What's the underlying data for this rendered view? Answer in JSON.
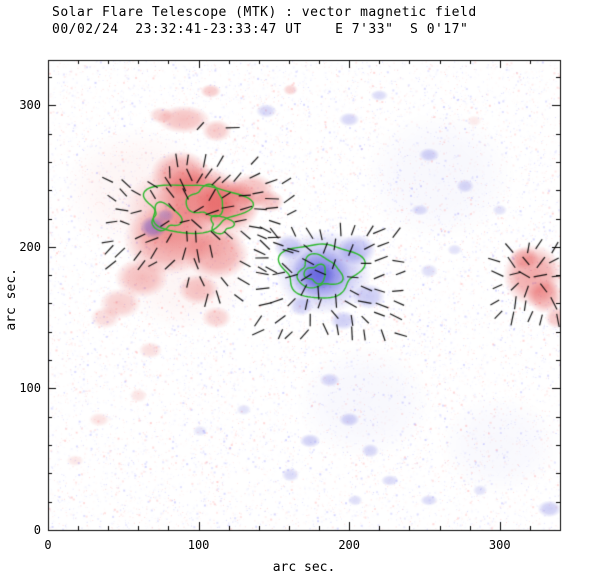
{
  "title": "Solar Flare Telescope (MTK) : vector magnetic field",
  "subtitle": "00/02/24  23:32:41-23:33:47 UT    E 7'33\"  S 0'17\"",
  "chart_data": {
    "type": "heatmap",
    "description": "Solar vector magnetogram. Red patches = positive line-of-sight polarity, blue patches = negative polarity, short black segments = transverse field vectors, green contours outline strong-field cores. Coordinates in arc seconds.",
    "title": "Solar Flare Telescope (MTK) : vector magnetic field",
    "subtitle": "00/02/24  23:32:41-23:33:47 UT    E 7'33\"  S 0'17\"",
    "xlabel": "arc sec.",
    "ylabel": "arc sec.",
    "xlim": [
      0,
      340
    ],
    "ylim": [
      0,
      332
    ],
    "xticks": [
      0,
      100,
      200,
      300
    ],
    "yticks": [
      0,
      100,
      200,
      300
    ],
    "minor_tick_interval": 20,
    "grid": false,
    "legend": "none",
    "colors": {
      "positive": "#e03030",
      "negative": "#4040d8",
      "contour": "#2db82d",
      "vectors": "#000000",
      "axis": "#000000",
      "background": "#ffffff"
    },
    "blob_format": "[cx_arcsec, cy_arcsec, rx_arcsec, ry_arcsec, alpha]",
    "regions": {
      "positive_red": [
        [
          95,
          225,
          45,
          35,
          0.28
        ],
        [
          80,
          205,
          30,
          25,
          0.38
        ],
        [
          100,
          235,
          28,
          22,
          0.42
        ],
        [
          120,
          230,
          22,
          18,
          0.42
        ],
        [
          88,
          252,
          20,
          16,
          0.38
        ],
        [
          112,
          195,
          22,
          18,
          0.38
        ],
        [
          62,
          178,
          18,
          14,
          0.3
        ],
        [
          48,
          160,
          14,
          11,
          0.24
        ],
        [
          38,
          150,
          10,
          8,
          0.18
        ],
        [
          135,
          240,
          16,
          12,
          0.32
        ],
        [
          147,
          232,
          10,
          8,
          0.28
        ],
        [
          100,
          170,
          14,
          11,
          0.28
        ],
        [
          112,
          150,
          10,
          8,
          0.22
        ],
        [
          90,
          290,
          18,
          10,
          0.3
        ],
        [
          112,
          282,
          10,
          8,
          0.26
        ],
        [
          75,
          293,
          8,
          6,
          0.2
        ],
        [
          108,
          310,
          7,
          5,
          0.26
        ],
        [
          161,
          311,
          5,
          4,
          0.22
        ],
        [
          68,
          127,
          8,
          6,
          0.16
        ],
        [
          34,
          78,
          7,
          5,
          0.14
        ],
        [
          18,
          49,
          6,
          4,
          0.12
        ],
        [
          60,
          95,
          6,
          5,
          0.13
        ],
        [
          322,
          180,
          20,
          22,
          0.42
        ],
        [
          330,
          165,
          12,
          12,
          0.38
        ],
        [
          316,
          192,
          10,
          8,
          0.28
        ],
        [
          338,
          150,
          8,
          8,
          0.28
        ],
        [
          283,
          289,
          5,
          4,
          0.1
        ],
        [
          60,
          240,
          50,
          45,
          0.05
        ],
        [
          90,
          180,
          45,
          40,
          0.05
        ]
      ],
      "negative_blue": [
        [
          183,
          182,
          32,
          30,
          0.32
        ],
        [
          181,
          181,
          20,
          18,
          0.42
        ],
        [
          180,
          180,
          11,
          10,
          0.48
        ],
        [
          205,
          198,
          13,
          11,
          0.32
        ],
        [
          160,
          200,
          10,
          9,
          0.28
        ],
        [
          213,
          165,
          11,
          9,
          0.28
        ],
        [
          196,
          148,
          9,
          7,
          0.26
        ],
        [
          168,
          158,
          8,
          7,
          0.24
        ],
        [
          70,
          214,
          9,
          8,
          0.42
        ],
        [
          78,
          222,
          6,
          5,
          0.28
        ],
        [
          145,
          296,
          7,
          5,
          0.22
        ],
        [
          200,
          290,
          7,
          5,
          0.22
        ],
        [
          220,
          307,
          6,
          4,
          0.2
        ],
        [
          253,
          265,
          7,
          5,
          0.25
        ],
        [
          277,
          243,
          6,
          5,
          0.22
        ],
        [
          247,
          226,
          6,
          4,
          0.2
        ],
        [
          300,
          226,
          5,
          4,
          0.16
        ],
        [
          253,
          183,
          6,
          5,
          0.18
        ],
        [
          270,
          198,
          5,
          4,
          0.16
        ],
        [
          187,
          106,
          7,
          5,
          0.22
        ],
        [
          200,
          78,
          7,
          5,
          0.25
        ],
        [
          174,
          63,
          7,
          5,
          0.25
        ],
        [
          214,
          56,
          6,
          5,
          0.22
        ],
        [
          161,
          39,
          6,
          5,
          0.2
        ],
        [
          227,
          35,
          6,
          4,
          0.2
        ],
        [
          253,
          21,
          6,
          4,
          0.2
        ],
        [
          204,
          21,
          5,
          4,
          0.18
        ],
        [
          287,
          28,
          5,
          4,
          0.16
        ],
        [
          333,
          15,
          8,
          6,
          0.26
        ],
        [
          130,
          85,
          5,
          4,
          0.16
        ],
        [
          101,
          70,
          5,
          4,
          0.14
        ],
        [
          260,
          250,
          50,
          45,
          0.04
        ],
        [
          210,
          90,
          45,
          40,
          0.04
        ],
        [
          300,
          60,
          40,
          35,
          0.035
        ]
      ]
    },
    "contour_format": "[cx, cy, rx, ry, wobble, phase]",
    "contours": [
      [
        97,
        228,
        33,
        17,
        0.15,
        0.8
      ],
      [
        78,
        221,
        9,
        9,
        0.22,
        2.1
      ],
      [
        105,
        232,
        12,
        10,
        0.18,
        4.0
      ],
      [
        115,
        216,
        7,
        6,
        0.2,
        1.2
      ],
      [
        181,
        184,
        26,
        19,
        0.12,
        0.3
      ],
      [
        180,
        182,
        14,
        11,
        0.18,
        2.6
      ],
      [
        178,
        181,
        7,
        6,
        0.2,
        5.0
      ]
    ],
    "vector_regions": [
      {
        "x0": 40,
        "x1": 168,
        "y0": 186,
        "y1": 246,
        "step": 10,
        "cx": 95,
        "cy": 220,
        "skip": 0.15
      },
      {
        "x0": 72,
        "x1": 140,
        "y0": 250,
        "y1": 266,
        "step": 11,
        "cx": 95,
        "cy": 225,
        "skip": 0.2
      },
      {
        "x0": 92,
        "x1": 150,
        "y0": 164,
        "y1": 180,
        "step": 12,
        "cx": 100,
        "cy": 200,
        "skip": 0.25
      },
      {
        "x0": 142,
        "x1": 232,
        "y0": 140,
        "y1": 210,
        "step": 10,
        "cx": 183,
        "cy": 180,
        "skip": 0.15
      },
      {
        "x0": 298,
        "x1": 340,
        "y0": 150,
        "y1": 200,
        "step": 10,
        "cx": 322,
        "cy": 180,
        "skip": 0.1
      },
      {
        "x0": 86,
        "x1": 128,
        "y0": 284,
        "y1": 296,
        "step": 13,
        "cx": 105,
        "cy": 290,
        "skip": 0.3
      }
    ],
    "noise": {
      "count": 15000,
      "red": "#ff8080",
      "blue": "#8080ff"
    }
  }
}
